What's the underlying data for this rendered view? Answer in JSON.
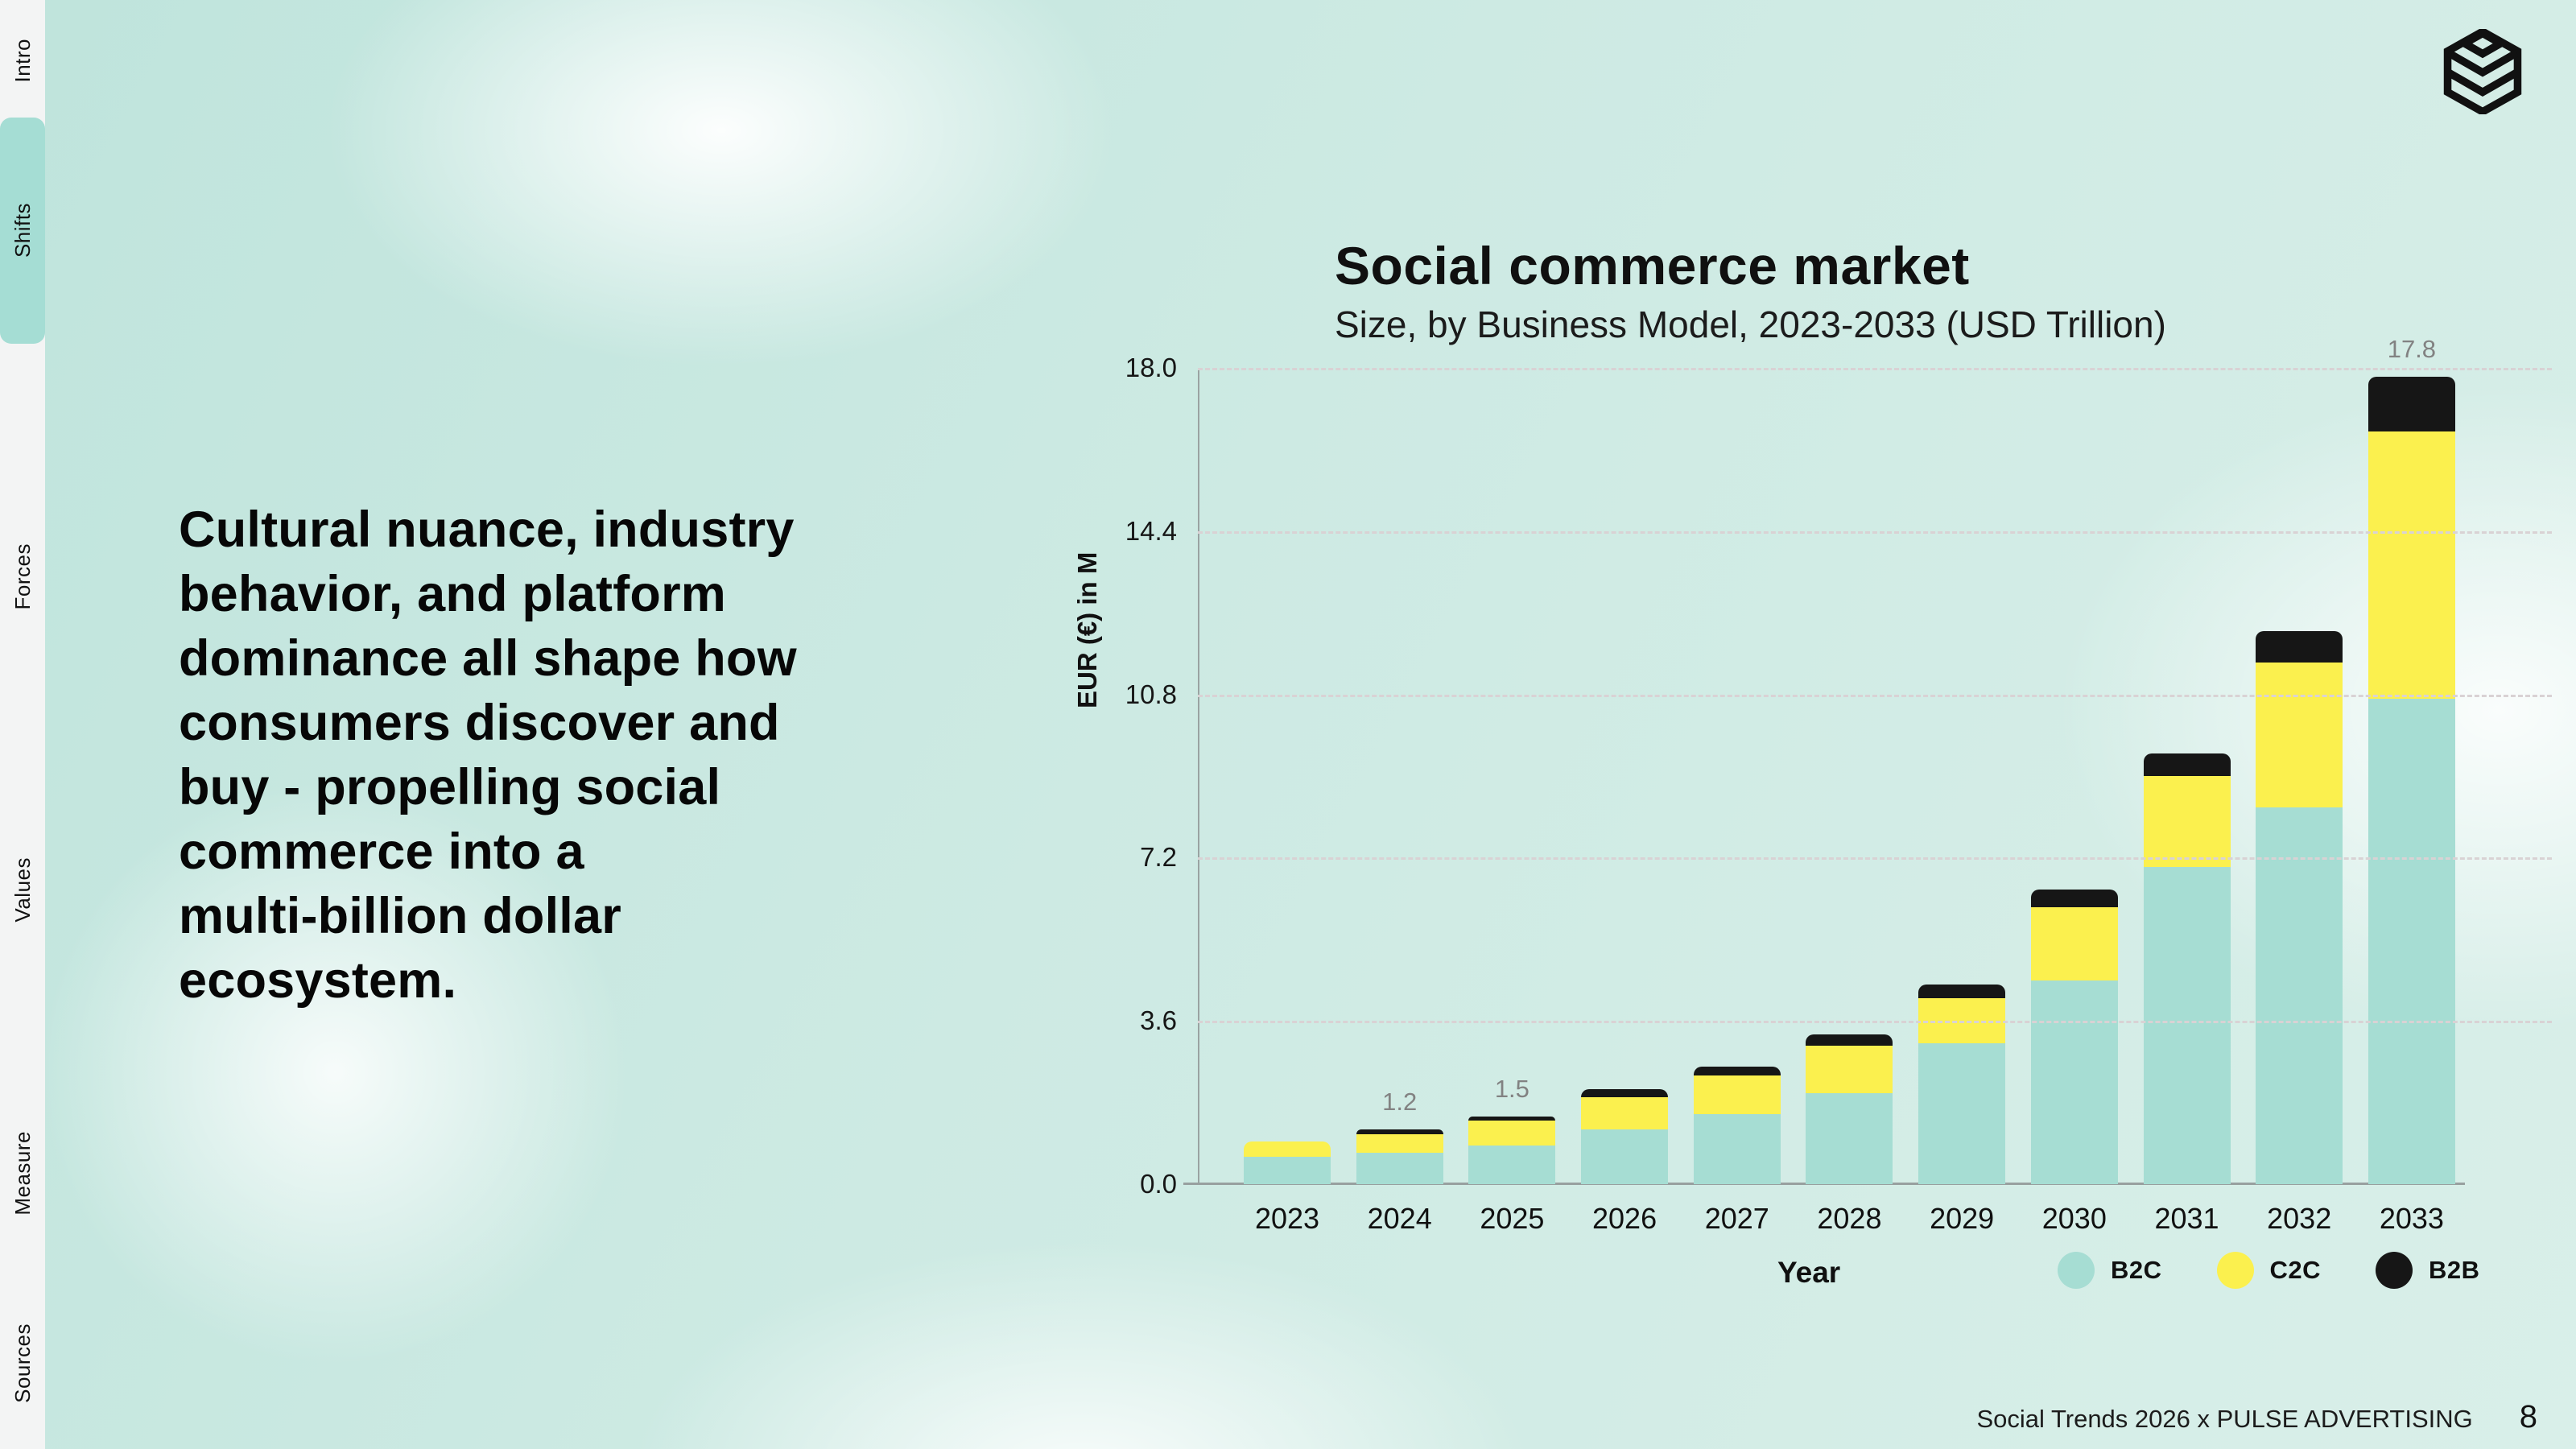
{
  "sidebar": {
    "items": [
      {
        "label": "Intro",
        "active": false
      },
      {
        "label": "Shifts",
        "active": true
      },
      {
        "label": "Forces",
        "active": false
      },
      {
        "label": "Values",
        "active": false
      },
      {
        "label": "Measure",
        "active": false
      },
      {
        "label": "Sources",
        "active": false
      }
    ]
  },
  "logo": {
    "icon": "stacked-cube-icon"
  },
  "headline": {
    "lines": [
      "Cultural nuance, industry",
      "behavior, and platform",
      "dominance all shape how",
      "consumers discover and",
      "buy - propelling social",
      "commerce into a",
      "multi-billion dollar",
      "ecosystem."
    ]
  },
  "chart_data": {
    "type": "bar",
    "stacked": true,
    "title": "Social commerce market",
    "subtitle": "Size, by Business Model, 2023-2033 (USD Trillion)",
    "xlabel": "Year",
    "ylabel": "EUR (€) in M",
    "ylim": [
      0,
      18
    ],
    "ytick_values": [
      0.0,
      3.6,
      7.2,
      10.8,
      14.4,
      18.0
    ],
    "grid": "dashed-horizontal",
    "legend_position": "bottom-right",
    "categories": [
      "2023",
      "2024",
      "2025",
      "2026",
      "2027",
      "2028",
      "2029",
      "2030",
      "2031",
      "2032",
      "2033"
    ],
    "series": [
      {
        "name": "B2C",
        "color": "#a6ddd3",
        "values": [
          0.6,
          0.7,
          0.85,
          1.2,
          1.55,
          2.0,
          3.1,
          4.5,
          7.0,
          8.3,
          10.7
        ]
      },
      {
        "name": "C2C",
        "color": "#fbf04e",
        "values": [
          0.35,
          0.4,
          0.55,
          0.72,
          0.85,
          1.05,
          1.0,
          1.6,
          2.0,
          3.2,
          5.9
        ]
      },
      {
        "name": "B2B",
        "color": "#161616",
        "values": [
          0.0,
          0.1,
          0.1,
          0.18,
          0.2,
          0.25,
          0.3,
          0.4,
          0.5,
          0.7,
          1.2
        ]
      }
    ],
    "annotations": {
      "2024": "1.2",
      "2025": "1.5",
      "2033": "17.8"
    }
  },
  "footer": {
    "credit": "Social Trends 2026 x PULSE ADVERTISING",
    "page": "8"
  }
}
